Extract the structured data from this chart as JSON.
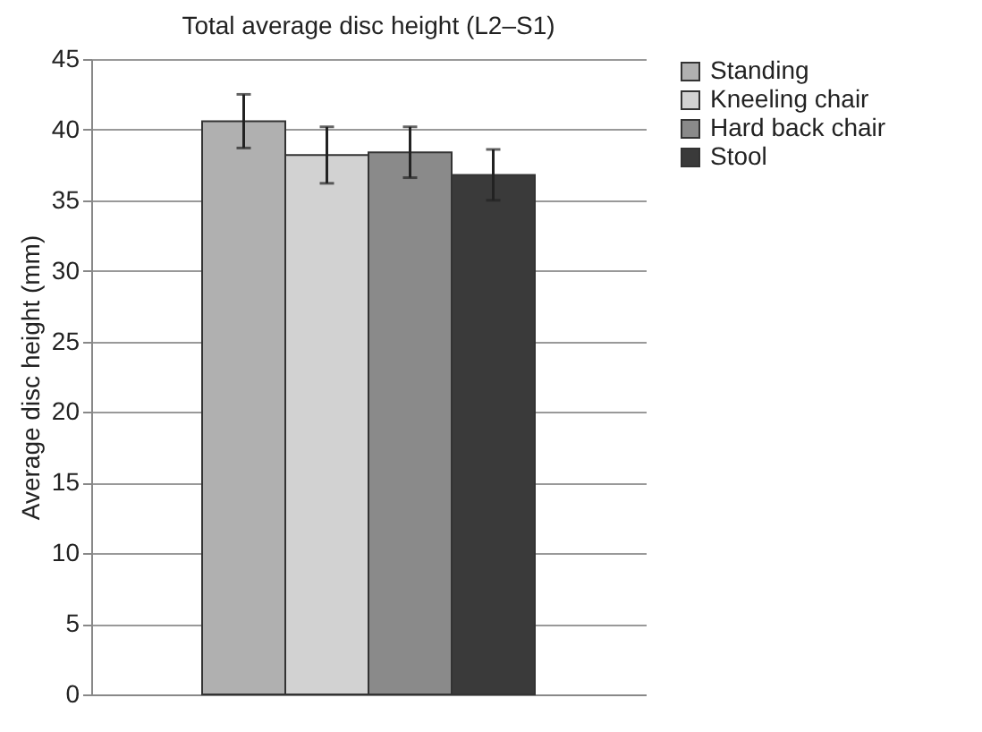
{
  "chart_data": {
    "type": "bar",
    "title": "Total average disc height (L2–S1)",
    "ylabel": "Average disc height (mm)",
    "categories": [
      null
    ],
    "series": [
      {
        "name": "Standing",
        "color": "#b0b0b0",
        "values": [
          40.6
        ],
        "errors": [
          1.9
        ]
      },
      {
        "name": "Kneeling chair",
        "color": "#d2d2d2",
        "values": [
          38.2
        ],
        "errors": [
          2.0
        ]
      },
      {
        "name": "Hard back chair",
        "color": "#8a8a8a",
        "values": [
          38.4
        ],
        "errors": [
          1.8
        ]
      },
      {
        "name": "Stool",
        "color": "#3a3a3a",
        "values": [
          36.8
        ],
        "errors": [
          1.8
        ]
      }
    ],
    "ylim": [
      0,
      45
    ],
    "yticks": [
      0,
      5,
      10,
      15,
      20,
      25,
      30,
      35,
      40,
      45
    ],
    "grid": "y",
    "legend": "right"
  }
}
